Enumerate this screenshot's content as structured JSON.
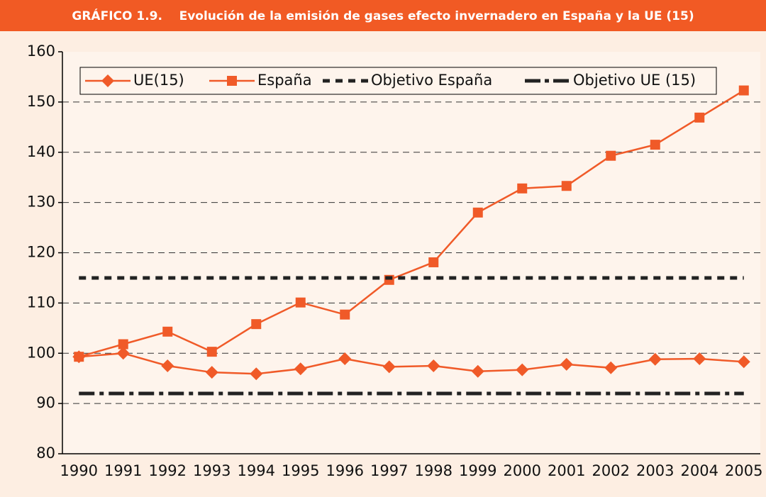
{
  "chart_data": {
    "type": "line",
    "title": "GRÁFICO 1.9.    Evolución de la emisión de gases efecto invernadero en España y la UE (15)",
    "categories": [
      "1990",
      "1991",
      "1992",
      "1993",
      "1994",
      "1995",
      "1996",
      "1997",
      "1998",
      "1999",
      "2000",
      "2001",
      "2002",
      "2003",
      "2004",
      "2005"
    ],
    "series": [
      {
        "name": "UE(15)",
        "color": "#f05a28",
        "marker": "diamond",
        "values": [
          99.3,
          100,
          97.5,
          96.2,
          95.9,
          96.9,
          98.9,
          97.3,
          97.5,
          96.4,
          96.7,
          97.8,
          97.1,
          98.8,
          98.9,
          98.3
        ]
      },
      {
        "name": "España",
        "color": "#f05a28",
        "marker": "square",
        "values": [
          99.3,
          101.8,
          104.3,
          100.3,
          105.8,
          110.1,
          107.7,
          114.6,
          118.1,
          128,
          132.8,
          133.3,
          139.3,
          141.5,
          146.9,
          152.3
        ]
      },
      {
        "name": "Objetivo España",
        "color": "#222222",
        "dash": "dash",
        "values": [
          115,
          115,
          115,
          115,
          115,
          115,
          115,
          115,
          115,
          115,
          115,
          115,
          115,
          115,
          115,
          115
        ]
      },
      {
        "name": "Objetivo UE (15)",
        "color": "#222222",
        "dash": "dashdot",
        "values": [
          92,
          92,
          92,
          92,
          92,
          92,
          92,
          92,
          92,
          92,
          92,
          92,
          92,
          92,
          92,
          92
        ]
      }
    ],
    "ylim": [
      80,
      160
    ],
    "yticks": [
      80,
      90,
      100,
      110,
      120,
      130,
      140,
      150,
      160
    ],
    "grid": true
  }
}
